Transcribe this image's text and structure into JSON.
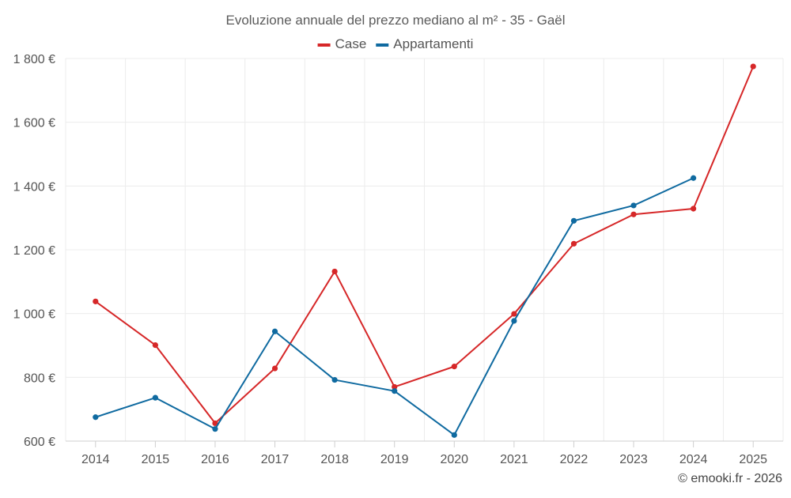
{
  "chart_data": {
    "type": "line",
    "title": "Evoluzione annuale del prezzo mediano al m² - 35 - Gaël",
    "categories": [
      "2014",
      "2015",
      "2016",
      "2017",
      "2018",
      "2019",
      "2020",
      "2021",
      "2022",
      "2023",
      "2024",
      "2025"
    ],
    "series": [
      {
        "name": "Case",
        "color": "#d62728",
        "values": [
          1038,
          901,
          656,
          828,
          1132,
          770,
          834,
          999,
          1219,
          1311,
          1329,
          1775
        ]
      },
      {
        "name": "Appartamenti",
        "color": "#0f6aa0",
        "values": [
          675,
          736,
          638,
          944,
          792,
          757,
          619,
          977,
          1291,
          1339,
          1425,
          null
        ]
      }
    ],
    "ylim": [
      600,
      1800
    ],
    "yticks": [
      600,
      800,
      1000,
      1200,
      1400,
      1600,
      1800
    ],
    "ytick_labels": [
      "600 €",
      "800 €",
      "1 000 €",
      "1 200 €",
      "1 400 €",
      "1 600 €",
      "1 800 €"
    ],
    "xlabel": "",
    "ylabel": "",
    "grid": true,
    "legend_position": "top-center"
  },
  "credit": "© emooki.fr - 2026"
}
